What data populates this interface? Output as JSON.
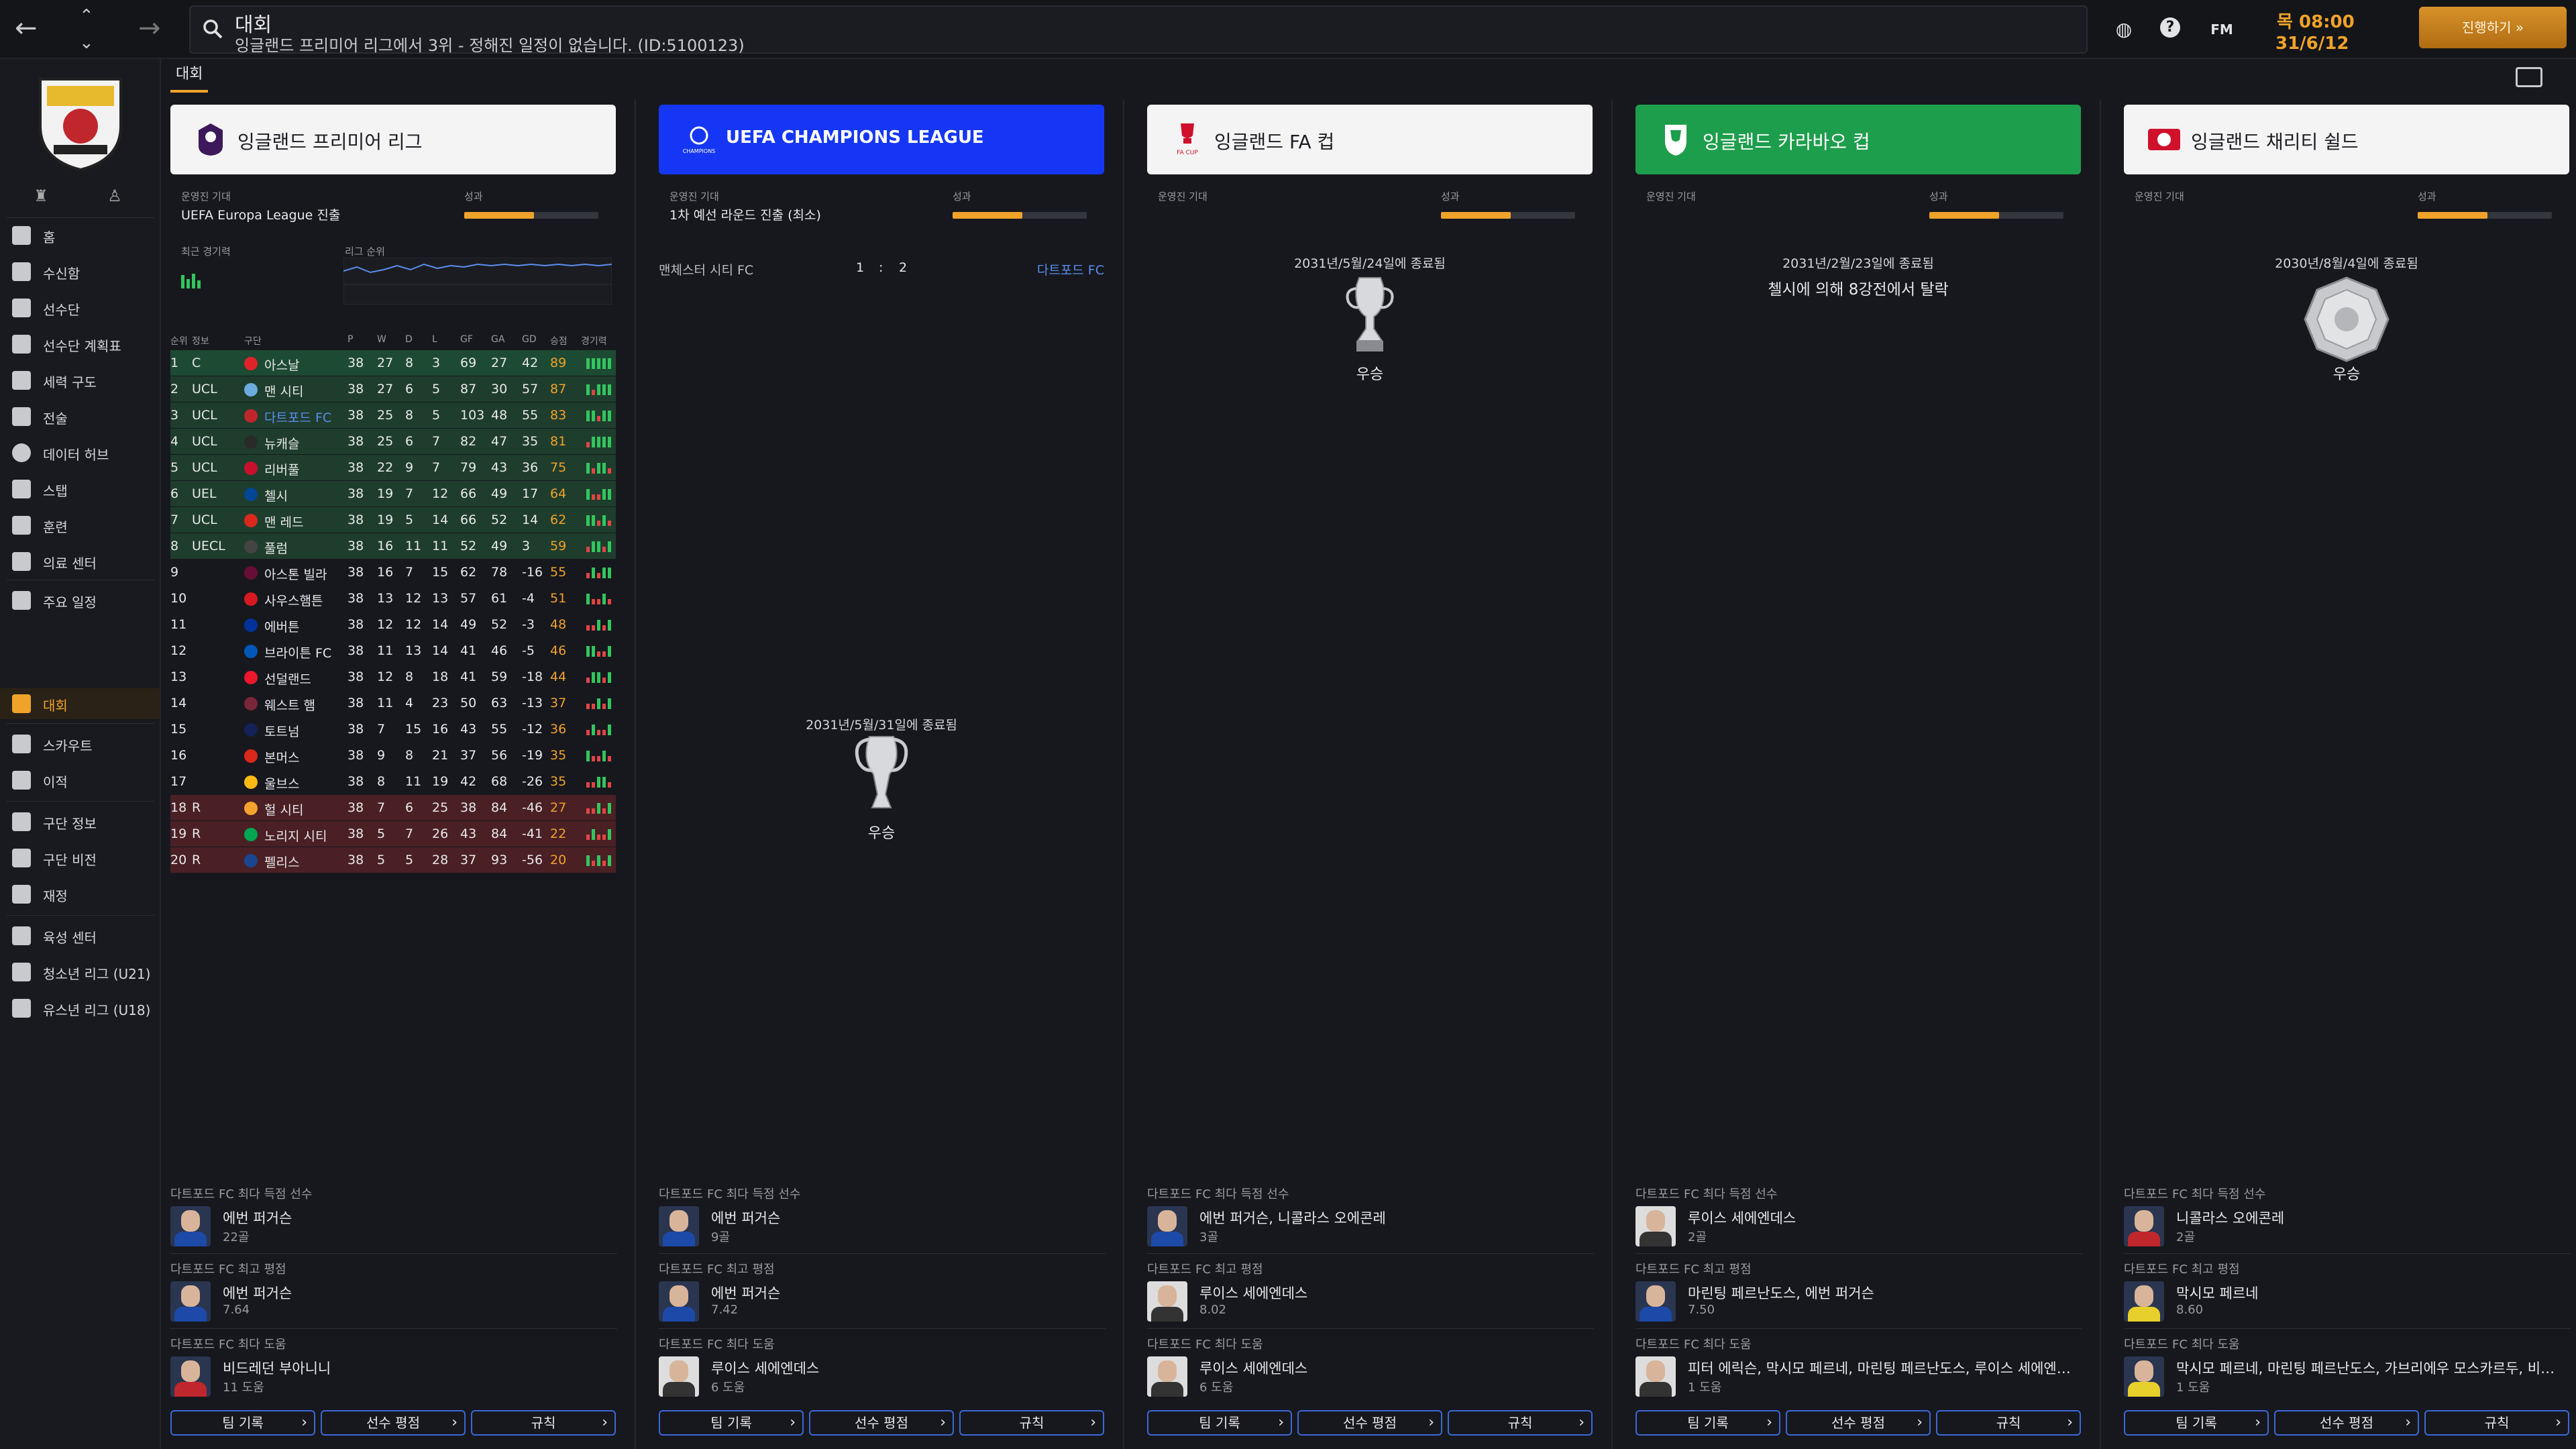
{
  "topbar": {
    "title": "대회",
    "status": "잉글랜드 프리미어 리그에서 3위 - 정해진 일정이 없습니다. (ID:5100123)",
    "fm_label": "FM",
    "date_day": "목 08:00",
    "date_date": "31/6/12",
    "continue_label": "진행하기"
  },
  "sidebar": {
    "items": [
      {
        "label": "홈"
      },
      {
        "label": "수신함"
      },
      {
        "label": "선수단"
      },
      {
        "label": "선수단 계획표"
      },
      {
        "label": "세력 구도"
      },
      {
        "label": "전술"
      },
      {
        "label": "데이터 허브"
      },
      {
        "label": "스탭"
      },
      {
        "label": "훈련"
      },
      {
        "label": "의료 센터"
      },
      {
        "label": "주요 일정"
      },
      {
        "label": "대회"
      },
      {
        "label": "스카우트"
      },
      {
        "label": "이적"
      },
      {
        "label": "구단 정보"
      },
      {
        "label": "구단 비전"
      },
      {
        "label": "재정"
      },
      {
        "label": "육성 센터"
      },
      {
        "label": "청소년 리그 (U21)"
      },
      {
        "label": "유스년 리그 (U18)"
      }
    ]
  },
  "tab": {
    "label": "대회"
  },
  "columns": [
    {
      "competition": "잉글랜드 프리미어 리그",
      "exp_label": "운영진 기대",
      "exp_value": "UEFA Europa League 진출",
      "perf_label": "성과",
      "perf_level": 0.52,
      "recent_form_label": "최근 경기력",
      "league_pos_label": "리그 순위",
      "table": {
        "headers": [
          "순위",
          "정보",
          "구단",
          "P",
          "W",
          "D",
          "L",
          "GF",
          "GA",
          "GD",
          "승점",
          "경기력"
        ],
        "rows": [
          [
            "1",
            "C",
            "아스날",
            "38",
            "27",
            "8",
            "3",
            "69",
            "27",
            "42",
            "89"
          ],
          [
            "2",
            "UCL",
            "맨 시티",
            "38",
            "27",
            "6",
            "5",
            "87",
            "30",
            "57",
            "87"
          ],
          [
            "3",
            "UCL",
            "다트포드 FC",
            "38",
            "25",
            "8",
            "5",
            "103",
            "48",
            "55",
            "83"
          ],
          [
            "4",
            "UCL",
            "뉴캐슬",
            "38",
            "25",
            "6",
            "7",
            "82",
            "47",
            "35",
            "81"
          ],
          [
            "5",
            "UCL",
            "리버풀",
            "38",
            "22",
            "9",
            "7",
            "79",
            "43",
            "36",
            "75"
          ],
          [
            "6",
            "UEL",
            "첼시",
            "38",
            "19",
            "7",
            "12",
            "66",
            "49",
            "17",
            "64"
          ],
          [
            "7",
            "UCL",
            "맨 레드",
            "38",
            "19",
            "5",
            "14",
            "66",
            "52",
            "14",
            "62"
          ],
          [
            "8",
            "UECL",
            "풀럼",
            "38",
            "16",
            "11",
            "11",
            "52",
            "49",
            "3",
            "59"
          ],
          [
            "9",
            "",
            "아스톤 빌라",
            "38",
            "16",
            "7",
            "15",
            "62",
            "78",
            "-16",
            "55"
          ],
          [
            "10",
            "",
            "사우스햄튼",
            "38",
            "13",
            "12",
            "13",
            "57",
            "61",
            "-4",
            "51"
          ],
          [
            "11",
            "",
            "에버튼",
            "38",
            "12",
            "12",
            "14",
            "49",
            "52",
            "-3",
            "48"
          ],
          [
            "12",
            "",
            "브라이튼 FC",
            "38",
            "11",
            "13",
            "14",
            "41",
            "46",
            "-5",
            "46"
          ],
          [
            "13",
            "",
            "선덜랜드",
            "38",
            "12",
            "8",
            "18",
            "41",
            "59",
            "-18",
            "44"
          ],
          [
            "14",
            "",
            "웨스트 햄",
            "38",
            "11",
            "4",
            "23",
            "50",
            "63",
            "-13",
            "37"
          ],
          [
            "15",
            "",
            "토트넘",
            "38",
            "7",
            "15",
            "16",
            "43",
            "55",
            "-12",
            "36"
          ],
          [
            "16",
            "",
            "본머스",
            "38",
            "9",
            "8",
            "21",
            "37",
            "56",
            "-19",
            "35"
          ],
          [
            "17",
            "",
            "울브스",
            "38",
            "8",
            "11",
            "19",
            "42",
            "68",
            "-26",
            "35"
          ],
          [
            "18",
            "R",
            "헐 시티",
            "38",
            "7",
            "6",
            "25",
            "38",
            "84",
            "-46",
            "27"
          ],
          [
            "19",
            "R",
            "노리지 시티",
            "38",
            "5",
            "7",
            "26",
            "43",
            "84",
            "-41",
            "22"
          ],
          [
            "20",
            "R",
            "펠리스",
            "38",
            "5",
            "5",
            "28",
            "37",
            "93",
            "-56",
            "20"
          ]
        ]
      },
      "bottom": {
        "scorer_label": "다트포드 FC 최다 득점 선수",
        "scorer_name": "에번 퍼거슨",
        "scorer_value": "22골",
        "rating_label": "다트포드 FC 최고 평점",
        "rating_name": "에번 퍼거슨",
        "rating_value": "7.64",
        "assist_label": "다트포드 FC 최다 도움",
        "assist_name": "비드레던 부아니니",
        "assist_value": "11 도움"
      }
    },
    {
      "competition": "UEFA CHAMPIONS LEAGUE",
      "exp_label": "운영진 기대",
      "exp_value": "1차 예선 라운드 진출 (최소)",
      "perf_label": "성과",
      "perf_level": 0.52,
      "match": {
        "home": "맨체스터 시티 FC",
        "home_score": "1",
        "sep": ":",
        "away_score": "2",
        "away": "다트포드 FC"
      },
      "ended": "2031년/5월/31일에 종료됨",
      "result": "우승",
      "bottom": {
        "scorer_label": "다트포드 FC 최다 득점 선수",
        "scorer_name": "에번 퍼거슨",
        "scorer_value": "9골",
        "rating_label": "다트포드 FC 최고 평점",
        "rating_name": "에번 퍼거슨",
        "rating_value": "7.42",
        "assist_label": "다트포드 FC 최다 도움",
        "assist_name": "루이스 세에엔데스",
        "assist_value": "6 도움"
      }
    },
    {
      "competition": "잉글랜드 FA 컵",
      "exp_label": "운영진 기대",
      "perf_label": "성과",
      "perf_level": 0.52,
      "ended": "2031년/5월/24일에 종료됨",
      "result": "우승",
      "bottom": {
        "scorer_label": "다트포드 FC 최다 득점 선수",
        "scorer_name": "에번 퍼거슨, 니콜라스 오에콘레",
        "scorer_value": "3골",
        "rating_label": "다트포드 FC 최고 평점",
        "rating_name": "루이스 세에엔데스",
        "rating_value": "8.02",
        "assist_label": "다트포드 FC 최다 도움",
        "assist_name": "루이스 세에엔데스",
        "assist_value": "6 도움"
      }
    },
    {
      "competition": "잉글랜드 카라바오 컵",
      "exp_label": "운영진 기대",
      "perf_label": "성과",
      "perf_level": 0.52,
      "ended": "2031년/2월/23일에 종료됨",
      "elim": "첼시에 의해 8강전에서 탈락",
      "bottom": {
        "scorer_label": "다트포드 FC 최다 득점 선수",
        "scorer_name": "루이스 세에엔데스",
        "scorer_value": "2골",
        "rating_label": "다트포드 FC 최고 평점",
        "rating_name": "마린팅 페르난도스, 에번 퍼거슨",
        "rating_value": "7.50",
        "assist_label": "다트포드 FC 최다 도움",
        "assist_name": "피터 에릭슨, 막시모 페르네, 마린팅 페르난도스, 루이스 세에엔데스, 니미...",
        "assist_value": "1 도움"
      }
    },
    {
      "competition": "잉글랜드 채리티 쉴드",
      "exp_label": "운영진 기대",
      "perf_label": "성과",
      "perf_level": 0.52,
      "ended": "2030년/8월/4일에 종료됨",
      "result": "우승",
      "bottom": {
        "scorer_label": "다트포드 FC 최다 득점 선수",
        "scorer_name": "니콜라스 오에콘레",
        "scorer_value": "2골",
        "rating_label": "다트포드 FC 최고 평점",
        "rating_name": "막시모 페르네",
        "rating_value": "8.60",
        "assist_label": "다트포드 FC 최다 도움",
        "assist_name": "막시모 페르네, 마린팅 페르난도스, 가브리에우 모스카르두, 비드레던 부아니니",
        "assist_value": "1 도움"
      }
    }
  ],
  "buttons": {
    "team_record": "팀 기록",
    "player_ratings": "선수 평점",
    "rules": "규칙"
  },
  "colors": {
    "accent": "#f0a32a",
    "cl_blue": "#1537f5",
    "carabao_green": "#1d9e4c",
    "button_border": "#3a68d6"
  }
}
